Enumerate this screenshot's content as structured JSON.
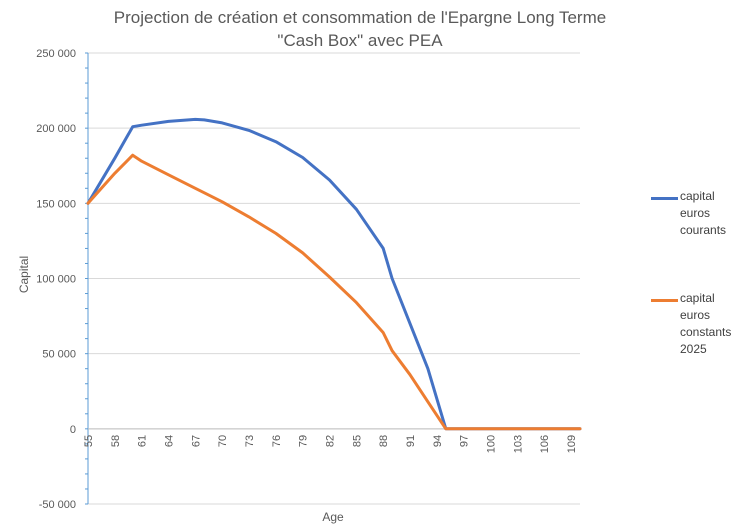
{
  "chart_data": {
    "type": "line",
    "title": "Projection de création et consommation de l'Epargne Long Terme",
    "subtitle": "\"Cash Box\" avec PEA",
    "xlabel": "Age",
    "ylabel": "Capital",
    "ylim": [
      -50000,
      250000
    ],
    "yticks": [
      "250 000",
      "200 000",
      "150 000",
      "100 000",
      "50 000",
      "0",
      "-50 000"
    ],
    "xtick_labels": [
      "55",
      "58",
      "61",
      "64",
      "67",
      "70",
      "73",
      "76",
      "79",
      "82",
      "85",
      "88",
      "91",
      "94",
      "97",
      "100",
      "103",
      "106",
      "109"
    ],
    "x": [
      55,
      58,
      60,
      61,
      64,
      67,
      68,
      70,
      73,
      76,
      79,
      82,
      85,
      88,
      89,
      91,
      93,
      95,
      97,
      100,
      103,
      106,
      109,
      110
    ],
    "series": [
      {
        "name": "capital euros courants",
        "color": "#4472C4",
        "values": [
          150000,
          180000,
          201000,
          202000,
          204500,
          205800,
          205500,
          203500,
          198500,
          191000,
          180500,
          165500,
          146000,
          120000,
          100000,
          70000,
          40000,
          0,
          0,
          0,
          0,
          0,
          0,
          0
        ]
      },
      {
        "name": "capital euros constants 2025",
        "color": "#ED7D31",
        "values": [
          150000,
          170000,
          182000,
          178000,
          169000,
          160000,
          157000,
          151000,
          141000,
          130000,
          117000,
          101000,
          84000,
          64000,
          52000,
          36000,
          18000,
          0,
          0,
          0,
          0,
          0,
          0,
          0
        ]
      }
    ],
    "legend": "right",
    "grid": true
  },
  "legend_items": [
    {
      "lines": [
        "capital",
        "euros",
        "courants"
      ],
      "color": "#4472C4"
    },
    {
      "lines": [
        "capital",
        "euros",
        "constants",
        "2025"
      ],
      "color": "#ED7D31"
    }
  ]
}
